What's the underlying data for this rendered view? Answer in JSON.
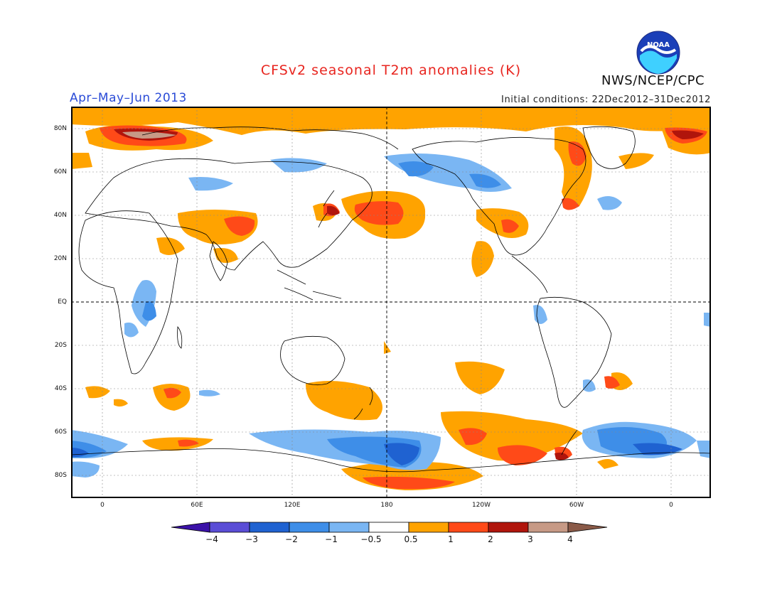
{
  "header": {
    "title": "CFSv2 seasonal T2m anomalies (K)",
    "period": "Apr–May–Jun 2013",
    "initial_conditions": "Initial conditions: 22Dec2012–31Dec2012",
    "organization": "NWS/NCEP/CPC",
    "logo_text": "NOAA"
  },
  "axes": {
    "y_ticks": [
      "80N",
      "60N",
      "40N",
      "20N",
      "EQ",
      "20S",
      "40S",
      "60S",
      "80S"
    ],
    "x_ticks": [
      "0",
      "60E",
      "120E",
      "180",
      "120W",
      "60W",
      "0"
    ]
  },
  "colorbar": {
    "labels": [
      "−4",
      "−3",
      "−2",
      "−1",
      "−0.5",
      "0.5",
      "1",
      "2",
      "3",
      "4"
    ],
    "colors": [
      "#3b12a8",
      "#5a4dd6",
      "#1f62d1",
      "#3e8ee8",
      "#7ab6f3",
      "#ffffff",
      "#ffa300",
      "#ff4a18",
      "#b0150c",
      "#c79a86",
      "#8a5a48"
    ]
  },
  "legend_colors": {
    "warm1": "#ffa300",
    "warm2": "#ff4a18",
    "warm3": "#b0150c",
    "warm4": "#c79a86",
    "cool1": "#7ab6f3",
    "cool2": "#3e8ee8",
    "cool3": "#1f62d1"
  }
}
